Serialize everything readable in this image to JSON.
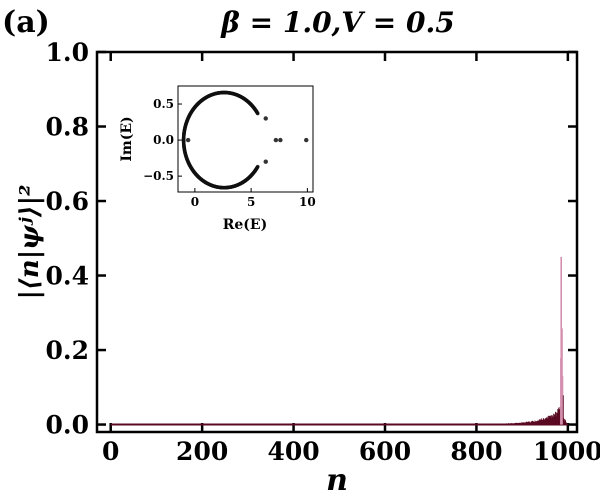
{
  "panel_label": "(a)",
  "title": "β = 1.0,V = 0.5",
  "main_chart": {
    "type": "bar",
    "xlabel": "n",
    "ylabel": "|⟨n|ψʲ⟩|²",
    "xlim": [
      -30,
      1020
    ],
    "ylim": [
      -0.02,
      1.0
    ],
    "xticks": [
      0,
      200,
      400,
      600,
      800,
      1000
    ],
    "xtick_labels": [
      "0",
      "200",
      "400",
      "600",
      "800",
      "1000"
    ],
    "yticks": [
      0.0,
      0.2,
      0.4,
      0.6,
      0.8,
      1.0
    ],
    "ytick_labels": [
      "0.0",
      "0.2",
      "0.4",
      "0.6",
      "0.8",
      "1.0"
    ],
    "colors": {
      "dark": "#5a0a22",
      "light": "#d48fae"
    },
    "profile": [
      {
        "n": 0,
        "value": 0.0
      },
      {
        "n": 800,
        "value": 0.0
      },
      {
        "n": 850,
        "value": 0.002
      },
      {
        "n": 900,
        "value": 0.006
      },
      {
        "n": 930,
        "value": 0.012
      },
      {
        "n": 950,
        "value": 0.02
      },
      {
        "n": 965,
        "value": 0.03
      },
      {
        "n": 975,
        "value": 0.04
      },
      {
        "n": 982,
        "value": 0.05
      },
      {
        "n": 985,
        "value": 0.45
      },
      {
        "n": 990,
        "value": 0.02
      },
      {
        "n": 1000,
        "value": 0.0
      }
    ]
  },
  "inset_chart": {
    "type": "scatter",
    "xlabel": "Re(E)",
    "ylabel": "Im(E)",
    "xlim": [
      -1.5,
      10.5
    ],
    "ylim": [
      -0.72,
      0.75
    ],
    "xticks": [
      0,
      5,
      10
    ],
    "xtick_labels": [
      "0",
      "5",
      "10"
    ],
    "yticks": [
      -0.5,
      0.0,
      0.5
    ],
    "ytick_labels": [
      "−0.5",
      "0.0",
      "0.5"
    ],
    "isolated_points": [
      {
        "x": 7.2,
        "y": 0.0
      },
      {
        "x": 7.6,
        "y": 0.0
      },
      {
        "x": 9.9,
        "y": 0.0
      },
      {
        "x": -0.6,
        "y": 0.0
      },
      {
        "x": 6.3,
        "y": 0.3
      },
      {
        "x": 6.3,
        "y": -0.3
      }
    ]
  }
}
